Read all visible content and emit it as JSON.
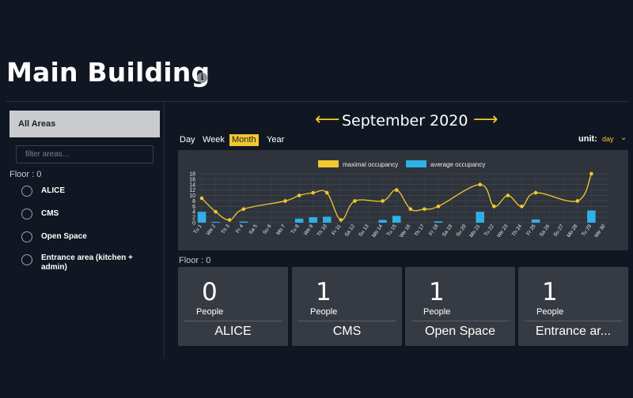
{
  "page": {
    "title": "Main Building",
    "info_icon": "info-icon"
  },
  "sidebar": {
    "all_areas": "All Areas",
    "filter_placeholder": "filter areas...",
    "floor": "Floor : 0",
    "areas": [
      "ALICE",
      "CMS",
      "Open Space",
      "Entrance area (kitchen + admin)"
    ]
  },
  "nav": {
    "prev": "⟵",
    "next": "⟶",
    "month": "September 2020"
  },
  "tabs": [
    {
      "label": "Day",
      "active": false
    },
    {
      "label": "Week",
      "active": false
    },
    {
      "label": "Month",
      "active": true
    },
    {
      "label": "Year",
      "active": false
    }
  ],
  "unit": {
    "label": "unit:",
    "value": "day"
  },
  "colors": {
    "accent": "#f2c92e",
    "bar": "#2fb0e8",
    "card": "#363b43",
    "chart_bg": "#2f343c"
  },
  "chart_data": {
    "type": "line",
    "legend": [
      "maximal occupancy",
      "average occupancy"
    ],
    "legend_position": "top-center",
    "categories": [
      "Tu 1",
      "We 2",
      "Th 3",
      "Fr 4",
      "Sa 5",
      "Su 6",
      "Mo 7",
      "Tu 8",
      "We 9",
      "Th 10",
      "Fr 11",
      "Sa 12",
      "Su 13",
      "Mo 14",
      "Tu 15",
      "We 16",
      "Th 17",
      "Fr 18",
      "Sa 19",
      "Su 20",
      "Mo 21",
      "Tu 22",
      "We 23",
      "Th 24",
      "Fr 25",
      "Sa 26",
      "Su 27",
      "Mo 28",
      "Tu 29",
      "We 30"
    ],
    "ylim": [
      0,
      18
    ],
    "yticks": [
      0,
      2,
      4,
      6,
      8,
      10,
      12,
      14,
      16,
      18
    ],
    "grid": true,
    "series": [
      {
        "name": "maximal occupancy",
        "type": "line",
        "values": [
          9,
          4,
          1,
          5,
          null,
          null,
          8,
          10,
          11,
          11,
          1,
          8,
          null,
          8,
          12,
          5,
          5,
          6,
          null,
          null,
          14,
          6,
          10,
          6,
          11,
          null,
          null,
          8,
          18,
          null
        ]
      },
      {
        "name": "average occupancy",
        "type": "bar",
        "values": [
          4,
          0.3,
          0,
          0.4,
          0,
          0,
          0,
          1.5,
          2,
          2.2,
          0,
          0,
          0,
          1,
          2.5,
          0,
          0,
          0.5,
          0,
          0,
          4,
          0,
          0,
          0,
          1.2,
          0,
          0,
          0,
          4.5,
          0
        ]
      }
    ]
  },
  "main": {
    "floor": "Floor : 0",
    "cards": [
      {
        "count": "0",
        "unit": "People",
        "name": "ALICE"
      },
      {
        "count": "1",
        "unit": "People",
        "name": "CMS"
      },
      {
        "count": "1",
        "unit": "People",
        "name": "Open Space"
      },
      {
        "count": "1",
        "unit": "People",
        "name": "Entrance ar..."
      }
    ]
  }
}
